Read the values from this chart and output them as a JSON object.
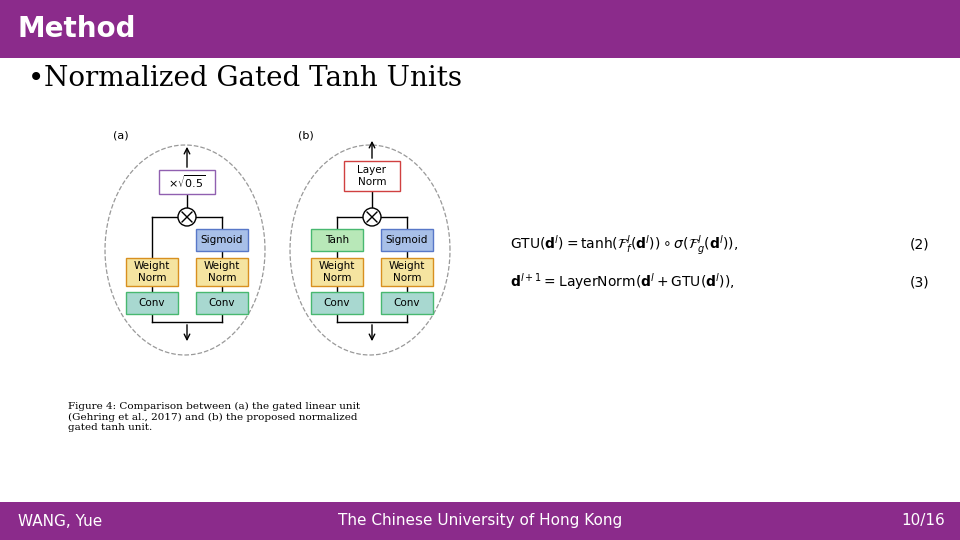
{
  "title": "Method",
  "title_bg": "#8B2B8B",
  "title_text_color": "#FFFFFF",
  "title_font_size": 20,
  "bg_color": "#FFFFFF",
  "bullet_text": "Normalized Gated Tanh Units",
  "bullet_font_size": 20,
  "footer_bg": "#8B2B8B",
  "footer_text_color": "#FFFFFF",
  "footer_left": "WANG, Yue",
  "footer_center": "The Chinese University of Hong Kong",
  "footer_right": "10/16",
  "footer_font_size": 11,
  "col_yellow": "#F5E4A0",
  "col_teal": "#A8D8D0",
  "col_blue": "#A8C0E8",
  "col_green_border": "#48B870",
  "col_purple_border": "#9060B0",
  "col_red_border": "#D04040",
  "col_orange_border": "#D89020",
  "col_blue_border": "#5878C8"
}
